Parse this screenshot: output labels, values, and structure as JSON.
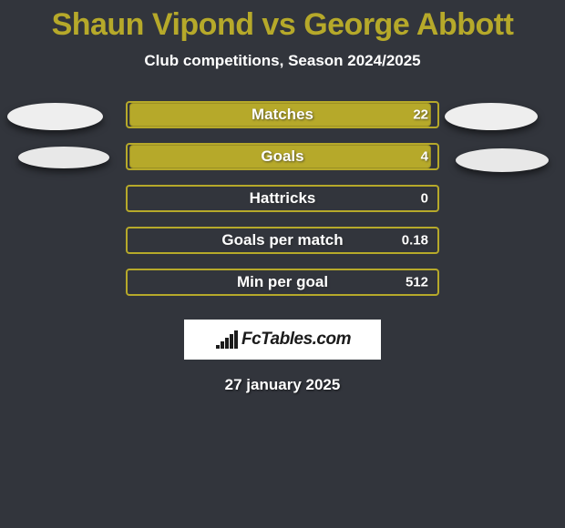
{
  "header": {
    "title": "Shaun Vipond vs George Abbott",
    "title_color": "#b6a92a",
    "subtitle": "Club competitions, Season 2024/2025"
  },
  "avatars": {
    "left_1_bg": "#eeeeee",
    "left_2_bg": "#e8e8e8",
    "right_1_bg": "#eeeeee",
    "right_2_bg": "#e8e8e8"
  },
  "bars": {
    "track_bg": "#32353c",
    "track_border": "#b6a92a",
    "fill_color": "#b6a92a",
    "fill_border": "#9c9024",
    "rows": [
      {
        "label": "Matches",
        "value": "22",
        "fill_pct": 98
      },
      {
        "label": "Goals",
        "value": "4",
        "fill_pct": 98
      },
      {
        "label": "Hattricks",
        "value": "0",
        "fill_pct": 0
      },
      {
        "label": "Goals per match",
        "value": "0.18",
        "fill_pct": 0
      },
      {
        "label": "Min per goal",
        "value": "512",
        "fill_pct": 0
      }
    ]
  },
  "brand": {
    "text": "FcTables.com",
    "icon_bars": [
      4,
      8,
      12,
      16,
      20
    ]
  },
  "date": "27 january 2025",
  "background_color": "#32353c"
}
